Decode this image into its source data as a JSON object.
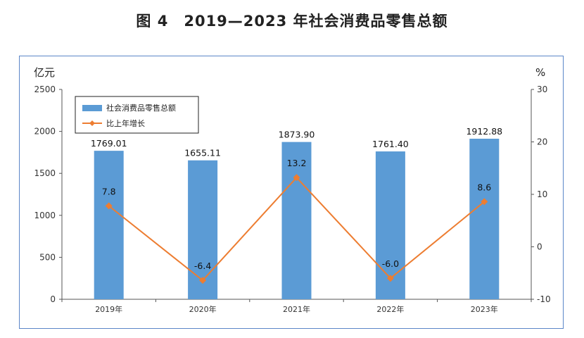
{
  "title": "图 4　2019—2023 年社会消费品零售总额",
  "chart_data": {
    "type": "bar+line",
    "categories": [
      "2019年",
      "2020年",
      "2021年",
      "2022年",
      "2023年"
    ],
    "series": [
      {
        "name": "社会消费品零售总额",
        "type": "bar",
        "axis": "left",
        "color": "#5b9bd5",
        "values": [
          1769.01,
          1655.11,
          1873.9,
          1761.4,
          1912.88
        ],
        "labels": [
          "1769.01",
          "1655.11",
          "1873.90",
          "1761.40",
          "1912.88"
        ]
      },
      {
        "name": "比上年增长",
        "type": "line",
        "axis": "right",
        "color": "#ed7d31",
        "values": [
          7.8,
          -6.4,
          13.2,
          -6.0,
          8.6
        ],
        "labels": [
          "7.8",
          "-6.4",
          "13.2",
          "-6.0",
          "8.6"
        ]
      }
    ],
    "y_left": {
      "unit": "亿元",
      "range": [
        0,
        2500
      ],
      "ticks": [
        "0",
        "500",
        "1000",
        "1500",
        "2000",
        "2500"
      ]
    },
    "y_right": {
      "unit": "%",
      "range": [
        -10,
        30
      ],
      "ticks": [
        "-10",
        "0",
        "10",
        "20",
        "30"
      ]
    },
    "legend": "top-left",
    "grid": false
  }
}
